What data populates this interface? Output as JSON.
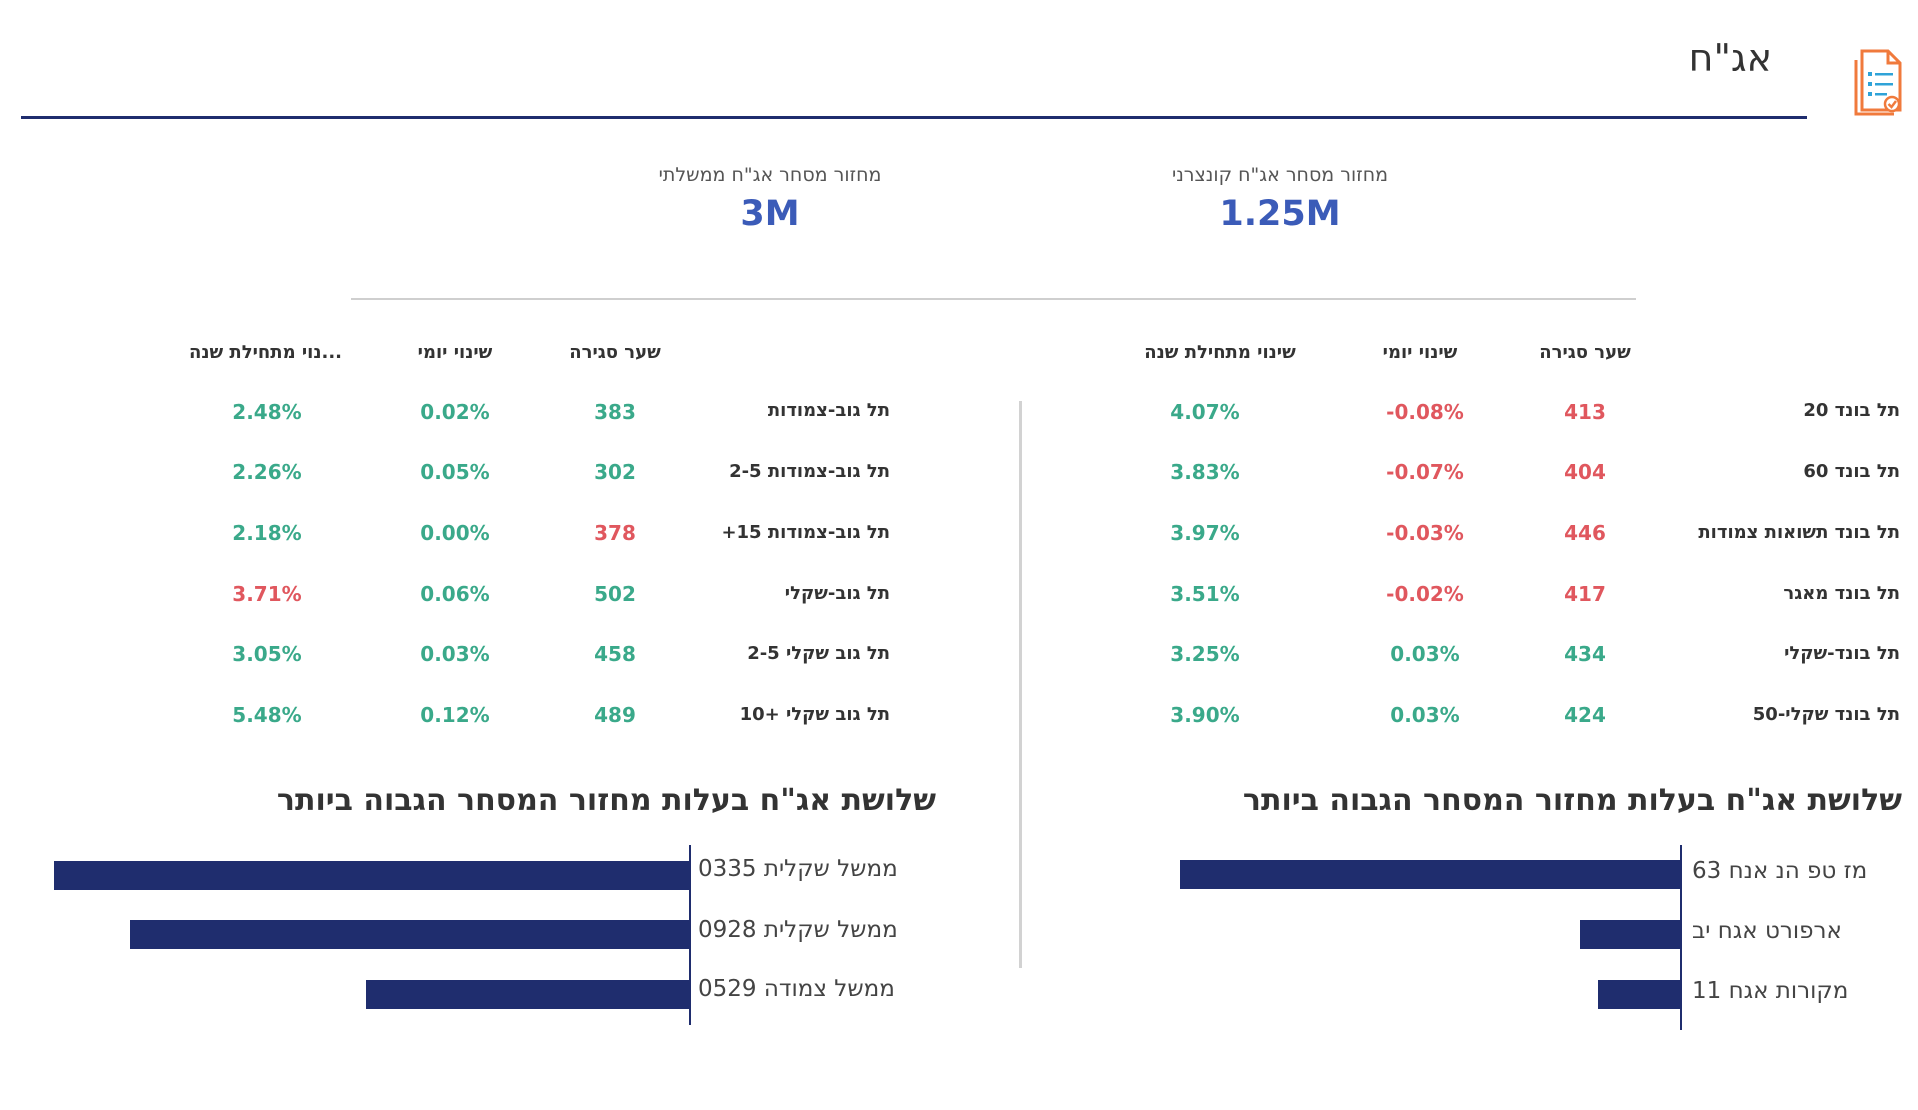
{
  "header": {
    "title": "אג\"ח",
    "icon": "document-checklist-icon",
    "accent_color": "#1f2d6e",
    "icon_color": "#f07a3c"
  },
  "kpis": {
    "corporate": {
      "label": "מחזור מסחר אג\"ח קונצרני",
      "value": "1.25M"
    },
    "government": {
      "label": "מחזור מסחר אג\"ח ממשלתי",
      "value": "3M"
    }
  },
  "tables": {
    "corporate": {
      "headers": {
        "close": "שער סגירה",
        "daily": "שינוי יומי",
        "ytd": "שינוי מתחילת שנה"
      },
      "rows": [
        {
          "name": "תל בונד 20",
          "close": "413",
          "daily": "-0.08%",
          "ytd": "4.07%"
        },
        {
          "name": "תל בונד 60",
          "close": "404",
          "daily": "-0.07%",
          "ytd": "3.83%"
        },
        {
          "name": "תל בונד תשואות צמודות",
          "close": "446",
          "daily": "-0.03%",
          "ytd": "3.97%"
        },
        {
          "name": "תל בונד מאגר",
          "close": "417",
          "daily": "-0.02%",
          "ytd": "3.51%"
        },
        {
          "name": "תל בונד-שקלי",
          "close": "434",
          "daily": "0.03%",
          "ytd": "3.25%"
        },
        {
          "name": "תל בונד שקלי-50",
          "close": "424",
          "daily": "0.03%",
          "ytd": "3.90%"
        }
      ]
    },
    "government": {
      "headers": {
        "close": "שער סגירה",
        "daily": "שינוי יומי",
        "ytd": "...נוי מתחילת שנה"
      },
      "rows": [
        {
          "name": "תל גוב-צמודות",
          "close": "383",
          "daily": "0.02%",
          "ytd": "2.48%"
        },
        {
          "name": "תל גוב-צמודות 2-5",
          "close": "302",
          "daily": "0.05%",
          "ytd": "2.26%"
        },
        {
          "name": "תל גוב-צמודות 15+",
          "close": "378",
          "daily": "0.00%",
          "ytd": "2.18%"
        },
        {
          "name": "תל גוב-שקלי",
          "close": "502",
          "daily": "0.06%",
          "ytd": "3.71%"
        },
        {
          "name": "תל גוב שקלי 2-5",
          "close": "458",
          "daily": "0.03%",
          "ytd": "3.05%"
        },
        {
          "name": "תל גוב שקלי +10",
          "close": "489",
          "daily": "0.12%",
          "ytd": "5.48%"
        }
      ]
    }
  },
  "top_bonds": {
    "corporate": {
      "title": "שלושת אג\"ח בעלות מחזור המסחר הגבוה ביותר",
      "bars": [
        {
          "label": "מז טפ הנ אנח 63",
          "value": 1.0
        },
        {
          "label": "ארפורט אגח יב",
          "value": 0.2
        },
        {
          "label": "מקורות   אגח 11",
          "value": 0.163
        }
      ]
    },
    "government": {
      "title": "שלושת אג\"ח בעלות מחזור המסחר הגבוה ביותר",
      "bars": [
        {
          "label": "ממשל שקלית 0335",
          "value": 1.0
        },
        {
          "label": "ממשל שקלית 0928",
          "value": 0.881
        },
        {
          "label": "ממשל צמודה 0529",
          "value": 0.509
        }
      ]
    }
  },
  "colors": {
    "positive": "#3aa98a",
    "negative": "#e0575e",
    "bar": "#1f2d6e",
    "kpi": "#3b5bb8"
  }
}
